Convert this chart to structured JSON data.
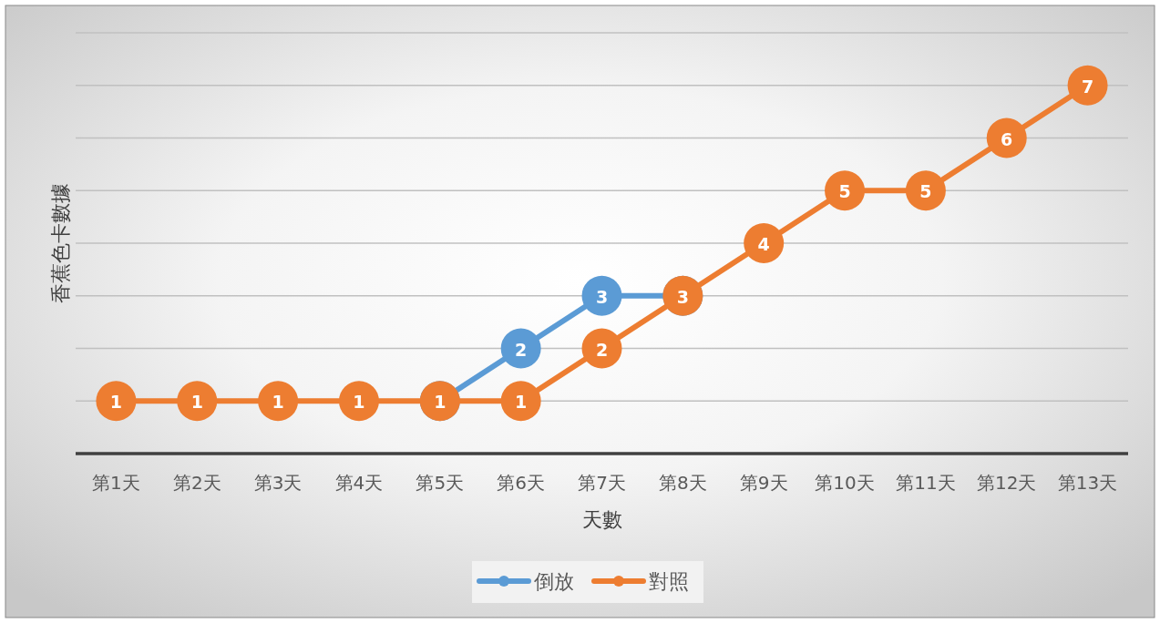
{
  "chart_data": {
    "type": "line",
    "xlabel": "天數",
    "ylabel": "香蕉色卡數據",
    "categories": [
      "第1天",
      "第2天",
      "第3天",
      "第4天",
      "第5天",
      "第6天",
      "第7天",
      "第8天",
      "第9天",
      "第10天",
      "第11天",
      "第12天",
      "第13天"
    ],
    "series": [
      {
        "name": "倒放",
        "color": "#5b9bd5",
        "values": [
          null,
          null,
          null,
          null,
          1,
          2,
          3,
          3,
          null,
          null,
          null,
          null,
          null
        ],
        "value_labels": [
          null,
          null,
          null,
          null,
          null,
          "2",
          "3",
          null,
          null,
          null,
          null,
          null,
          null
        ]
      },
      {
        "name": "對照",
        "color": "#ed7d31",
        "values": [
          1,
          1,
          1,
          1,
          1,
          1,
          2,
          3,
          4,
          5,
          5,
          6,
          7
        ]
      }
    ],
    "ylim": [
      0,
      8
    ],
    "yticks": [
      {
        "value": 0,
        "label": null
      },
      {
        "value": 1,
        "label": null
      },
      {
        "value": 2,
        "label": null
      },
      {
        "value": 3,
        "label": null
      },
      {
        "value": 4,
        "label": null
      },
      {
        "value": 5,
        "label": null
      },
      {
        "value": 6,
        "label": null
      },
      {
        "value": 7,
        "label": null
      },
      {
        "value": 8,
        "label": null
      }
    ],
    "tick_labels": "x",
    "grid": "y",
    "legend": "bottom",
    "marker": "circle",
    "line_style": "solid",
    "data_labels": true
  }
}
